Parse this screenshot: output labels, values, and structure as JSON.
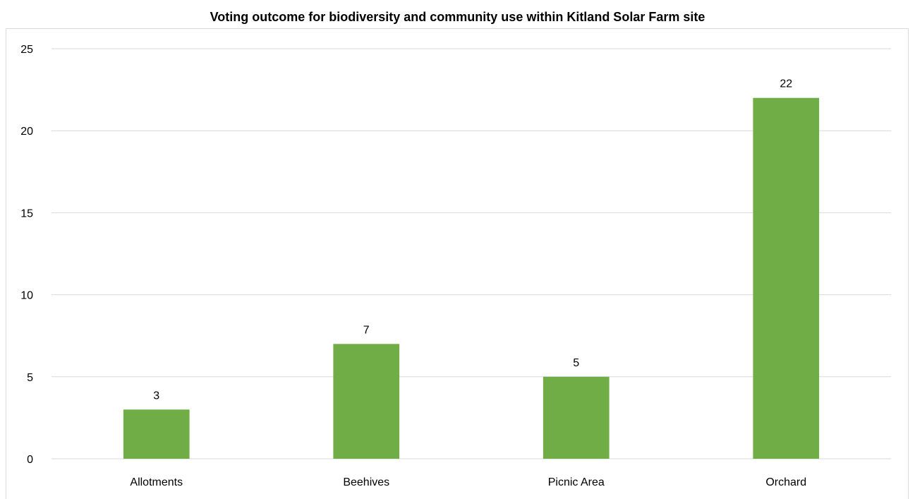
{
  "chart_data": {
    "type": "bar",
    "title": "Voting outcome for biodiversity and community use within Kitland Solar Farm site",
    "categories": [
      "Allotments",
      "Beehives",
      "Picnic Area",
      "Orchard"
    ],
    "values": [
      3,
      7,
      5,
      22
    ],
    "data_labels": [
      "3",
      "7",
      "5",
      "22"
    ],
    "xlabel": "",
    "ylabel": "",
    "ylim": [
      0,
      25
    ],
    "yticks": [
      "0",
      "5",
      "10",
      "15",
      "20",
      "25"
    ],
    "ytick_values": [
      0,
      5,
      10,
      15,
      20,
      25
    ],
    "grid": true,
    "legend": "none",
    "bar_color": "#70ad47",
    "grid_color": "#d9d9d9"
  }
}
